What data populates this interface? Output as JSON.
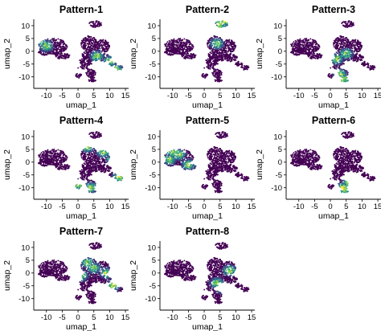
{
  "chart_data": {
    "type": "scatter",
    "layout": "3x3 grid of UMAP feature plots (8 panels)",
    "shared": {
      "xlabel": "umap_1",
      "ylabel": "umap_2",
      "xticks": [
        -10,
        -5,
        0,
        5,
        10,
        15
      ],
      "yticks": [
        10,
        5,
        0,
        -5,
        -10
      ],
      "xlim": [
        -14,
        16
      ],
      "ylim": [
        -14.5,
        12.5
      ],
      "colorscale": [
        "#440154",
        "#3b528b",
        "#21918c",
        "#5ec962",
        "#fde725"
      ],
      "background_point_color": "#440154",
      "grid": false
    },
    "panels": [
      {
        "title": "Pattern-1",
        "x_label": "umap_1",
        "y_label": "umap_2",
        "highlighted_region": "left cluster fringe and right clusters (x 3 to 13, y -8 to 4)",
        "high_expression_regions": [
          [
            -12,
            4
          ],
          [
            -10,
            2
          ],
          [
            6,
            -2
          ],
          [
            10,
            -4
          ],
          [
            12,
            -7
          ]
        ]
      },
      {
        "title": "Pattern-2",
        "x_label": "umap_1",
        "y_label": "umap_2",
        "highlighted_region": "small top cluster (x 4 to 8, y 9 to 12)",
        "high_expression_regions": [
          [
            5,
            10.5
          ],
          [
            6.5,
            11.5
          ],
          [
            4,
            3
          ]
        ]
      },
      {
        "title": "Pattern-3",
        "x_label": "umap_1",
        "y_label": "umap_2",
        "highlighted_region": "lower-central clusters (x 0 to 6, y -12 to 0)",
        "high_expression_regions": [
          [
            3,
            -9
          ],
          [
            4,
            -11
          ],
          [
            2,
            -3
          ],
          [
            5,
            -1
          ]
        ]
      },
      {
        "title": "Pattern-4",
        "x_label": "umap_1",
        "y_label": "umap_2",
        "highlighted_region": "broad right clusters (x 0 to 14, y -10 to 8)",
        "high_expression_regions": [
          [
            3,
            6
          ],
          [
            8,
            4
          ],
          [
            11,
            1
          ],
          [
            13,
            -6
          ],
          [
            4,
            -10
          ],
          [
            0,
            -9
          ]
        ]
      },
      {
        "title": "Pattern-5",
        "x_label": "umap_1",
        "y_label": "umap_2",
        "highlighted_region": "large left cluster (x -13 to -3, y -4 to 6)",
        "high_expression_regions": [
          [
            -10,
            4
          ],
          [
            -8,
            3
          ],
          [
            -11,
            1
          ],
          [
            -5,
            -1
          ]
        ]
      },
      {
        "title": "Pattern-6",
        "x_label": "umap_1",
        "y_label": "umap_2",
        "highlighted_region": "lower-right cluster (x 3 to 8, y -12 to -6)",
        "high_expression_regions": [
          [
            4,
            -10
          ],
          [
            5,
            -11
          ],
          [
            6,
            -8
          ]
        ]
      },
      {
        "title": "Pattern-7",
        "x_label": "umap_1",
        "y_label": "umap_2",
        "highlighted_region": "right clusters (x 0 to 12, y -8 to 6)",
        "high_expression_regions": [
          [
            3,
            4
          ],
          [
            5,
            2
          ],
          [
            1,
            -1
          ],
          [
            9,
            0
          ],
          [
            11,
            -5
          ]
        ]
      },
      {
        "title": "Pattern-8",
        "x_label": "umap_1",
        "y_label": "umap_2",
        "highlighted_region": "sparse right cluster (x 2 to 10, y -8 to 4)",
        "high_expression_regions": [
          [
            4,
            -4
          ],
          [
            6,
            -6
          ],
          [
            8,
            1
          ]
        ]
      }
    ]
  }
}
